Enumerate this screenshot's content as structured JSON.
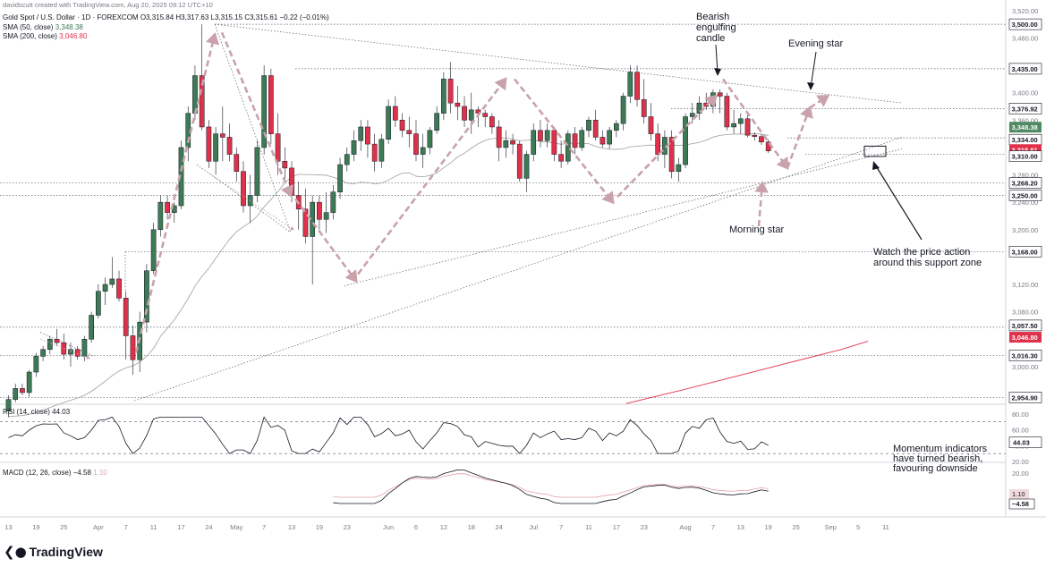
{
  "header": {
    "credit": "davidscutt created with TradingView.com, Aug 20, 2025 09:12 UTC+10",
    "symbol_line": "Gold Spot / U.S. Dollar · 1D · FOREXCOM  O3,315.84  H3,317.63  L3,315.15  C3,315.61  −0.22 (−0.01%)",
    "sma50_label": "SMA (50, close)",
    "sma50_value": "3,348.38",
    "sma200_label": "SMA (200, close)",
    "sma200_value": "3,046.80",
    "rsi_label": "RSI (14, close)",
    "rsi_value": "44.03",
    "macd_label": "MACD (12, 26, close)",
    "macd_value1": "−4.58",
    "macd_value2": "1.10"
  },
  "colors": {
    "up": "#3d7a55",
    "down": "#e0314a",
    "sma50": "#9e9e9e",
    "sma200": "#e0314a",
    "arrow": "#c9a2ab",
    "black": "#131722"
  },
  "annotations": {
    "bearish_engulfing": "Bearish\nengulfing\ncandle",
    "evening_star": "Evening star",
    "morning_star": "Morning star",
    "watch": "Watch the price action\naround this support zone",
    "momentum": "Momentum indicators\nhave turned bearish,\nfavouring downside"
  },
  "footer": {
    "logo_text": "TradingView"
  },
  "chart_data": {
    "type": "candlestick",
    "title": "Gold Spot / U.S. Dollar",
    "price_axis": {
      "ticks": [
        "3,520.00",
        "3,480.00",
        "3,400.00",
        "3,360.00",
        "3,280.00",
        "3,240.00",
        "3,200.00",
        "3,120.00",
        "3,080.00",
        "3,000.00"
      ],
      "tick_values": [
        3520,
        3480,
        3400,
        3360,
        3280,
        3240,
        3200,
        3120,
        3080,
        3000
      ],
      "ylim": [
        2945,
        3525
      ]
    },
    "level_labels": [
      {
        "text": "3,500.00",
        "value": 3500,
        "style": "black"
      },
      {
        "text": "3,435.00",
        "value": 3435,
        "style": "black"
      },
      {
        "text": "3,376.92",
        "value": 3376.92,
        "style": "black"
      },
      {
        "text": "3,348.38",
        "value": 3348.38,
        "style": "green"
      },
      {
        "text": "3,334.00",
        "value": 3334,
        "style": "black"
      },
      {
        "text": "3,315.61",
        "value": 3315.61,
        "style": "red"
      },
      {
        "text": "3,310.00",
        "value": 3310,
        "style": "black"
      },
      {
        "text": "3,268.20",
        "value": 3268.2,
        "style": "black"
      },
      {
        "text": "3,250.00",
        "value": 3250,
        "style": "black"
      },
      {
        "text": "3,168.00",
        "value": 3168,
        "style": "black"
      },
      {
        "text": "3,057.50",
        "value": 3057.5,
        "style": "black"
      },
      {
        "text": "3,046.80",
        "value": 3046.8,
        "style": "red"
      },
      {
        "text": "3,016.30",
        "value": 3016.3,
        "style": "black"
      },
      {
        "text": "2,954.90",
        "value": 2954.9,
        "style": "black"
      }
    ],
    "x_axis": [
      {
        "label": "13",
        "i": 0
      },
      {
        "label": "19",
        "i": 4
      },
      {
        "label": "25",
        "i": 8
      },
      {
        "label": "Apr",
        "i": 13
      },
      {
        "label": "7",
        "i": 17
      },
      {
        "label": "11",
        "i": 21
      },
      {
        "label": "17",
        "i": 25
      },
      {
        "label": "24",
        "i": 29
      },
      {
        "label": "May",
        "i": 33
      },
      {
        "label": "7",
        "i": 37
      },
      {
        "label": "13",
        "i": 41
      },
      {
        "label": "19",
        "i": 45
      },
      {
        "label": "23",
        "i": 49
      },
      {
        "label": "Jun",
        "i": 55
      },
      {
        "label": "6",
        "i": 59
      },
      {
        "label": "12",
        "i": 63
      },
      {
        "label": "18",
        "i": 67
      },
      {
        "label": "24",
        "i": 71
      },
      {
        "label": "Jul",
        "i": 76
      },
      {
        "label": "7",
        "i": 80
      },
      {
        "label": "11",
        "i": 84
      },
      {
        "label": "17",
        "i": 88
      },
      {
        "label": "23",
        "i": 92
      },
      {
        "label": "Aug",
        "i": 98
      },
      {
        "label": "7",
        "i": 102
      },
      {
        "label": "13",
        "i": 106
      },
      {
        "label": "19",
        "i": 110
      },
      {
        "label": "25",
        "i": 114
      },
      {
        "label": "Sep",
        "i": 119
      },
      {
        "label": "5",
        "i": 123
      },
      {
        "label": "11",
        "i": 127
      }
    ],
    "candles": [
      [
        2935,
        2958,
        2926,
        2952
      ],
      [
        2952,
        2975,
        2948,
        2968
      ],
      [
        2968,
        2975,
        2958,
        2962
      ],
      [
        2962,
        2995,
        2955,
        2992
      ],
      [
        2992,
        3020,
        2985,
        3015
      ],
      [
        3015,
        3030,
        3008,
        3025
      ],
      [
        3025,
        3045,
        3018,
        3040
      ],
      [
        3040,
        3055,
        3030,
        3035
      ],
      [
        3035,
        3048,
        3010,
        3018
      ],
      [
        3018,
        3035,
        3000,
        3025
      ],
      [
        3025,
        3030,
        3010,
        3015
      ],
      [
        3015,
        3045,
        3008,
        3040
      ],
      [
        3040,
        3080,
        3035,
        3075
      ],
      [
        3075,
        3120,
        3070,
        3110
      ],
      [
        3110,
        3130,
        3090,
        3120
      ],
      [
        3120,
        3160,
        3115,
        3128
      ],
      [
        3128,
        3140,
        3095,
        3100
      ],
      [
        3100,
        3110,
        3010,
        3045
      ],
      [
        3045,
        3060,
        2988,
        3010
      ],
      [
        3010,
        3080,
        2992,
        3065
      ],
      [
        3065,
        3150,
        3050,
        3140
      ],
      [
        3140,
        3210,
        3135,
        3200
      ],
      [
        3200,
        3250,
        3190,
        3240
      ],
      [
        3240,
        3250,
        3215,
        3225
      ],
      [
        3225,
        3240,
        3210,
        3235
      ],
      [
        3235,
        3330,
        3230,
        3320
      ],
      [
        3320,
        3380,
        3300,
        3370
      ],
      [
        3370,
        3440,
        3360,
        3425
      ],
      [
        3425,
        3500,
        3345,
        3350
      ],
      [
        3350,
        3360,
        3290,
        3300
      ],
      [
        3300,
        3350,
        3280,
        3340
      ],
      [
        3340,
        3380,
        3300,
        3335
      ],
      [
        3335,
        3355,
        3300,
        3310
      ],
      [
        3310,
        3320,
        3270,
        3285
      ],
      [
        3285,
        3300,
        3225,
        3235
      ],
      [
        3235,
        3280,
        3210,
        3250
      ],
      [
        3250,
        3330,
        3240,
        3320
      ],
      [
        3320,
        3440,
        3310,
        3425
      ],
      [
        3425,
        3435,
        3325,
        3340
      ],
      [
        3340,
        3370,
        3280,
        3300
      ],
      [
        3300,
        3320,
        3270,
        3290
      ],
      [
        3290,
        3300,
        3240,
        3250
      ],
      [
        3250,
        3270,
        3200,
        3230
      ],
      [
        3230,
        3260,
        3180,
        3190
      ],
      [
        3190,
        3250,
        3120,
        3240
      ],
      [
        3240,
        3250,
        3200,
        3215
      ],
      [
        3215,
        3255,
        3195,
        3225
      ],
      [
        3225,
        3265,
        3215,
        3255
      ],
      [
        3255,
        3305,
        3245,
        3295
      ],
      [
        3295,
        3320,
        3285,
        3310
      ],
      [
        3310,
        3345,
        3300,
        3330
      ],
      [
        3330,
        3360,
        3315,
        3350
      ],
      [
        3350,
        3360,
        3305,
        3325
      ],
      [
        3325,
        3340,
        3285,
        3300
      ],
      [
        3300,
        3340,
        3290,
        3332
      ],
      [
        3332,
        3390,
        3325,
        3380
      ],
      [
        3380,
        3395,
        3350,
        3360
      ],
      [
        3360,
        3370,
        3335,
        3345
      ],
      [
        3345,
        3365,
        3320,
        3340
      ],
      [
        3340,
        3360,
        3300,
        3310
      ],
      [
        3310,
        3340,
        3290,
        3320
      ],
      [
        3320,
        3350,
        3310,
        3345
      ],
      [
        3345,
        3380,
        3340,
        3370
      ],
      [
        3370,
        3430,
        3360,
        3420
      ],
      [
        3420,
        3445,
        3370,
        3385
      ],
      [
        3385,
        3410,
        3360,
        3380
      ],
      [
        3380,
        3395,
        3350,
        3360
      ],
      [
        3360,
        3400,
        3340,
        3375
      ],
      [
        3375,
        3380,
        3350,
        3370
      ],
      [
        3370,
        3375,
        3350,
        3365
      ],
      [
        3365,
        3370,
        3340,
        3350
      ],
      [
        3350,
        3360,
        3300,
        3320
      ],
      [
        3320,
        3345,
        3305,
        3330
      ],
      [
        3330,
        3340,
        3310,
        3325
      ],
      [
        3325,
        3330,
        3270,
        3275
      ],
      [
        3275,
        3315,
        3255,
        3310
      ],
      [
        3310,
        3355,
        3300,
        3345
      ],
      [
        3345,
        3360,
        3320,
        3330
      ],
      [
        3330,
        3355,
        3320,
        3345
      ],
      [
        3345,
        3350,
        3300,
        3310
      ],
      [
        3310,
        3330,
        3290,
        3300
      ],
      [
        3300,
        3345,
        3295,
        3340
      ],
      [
        3340,
        3350,
        3310,
        3320
      ],
      [
        3320,
        3350,
        3315,
        3345
      ],
      [
        3345,
        3365,
        3335,
        3360
      ],
      [
        3360,
        3375,
        3330,
        3335
      ],
      [
        3335,
        3345,
        3320,
        3325
      ],
      [
        3325,
        3350,
        3318,
        3345
      ],
      [
        3345,
        3360,
        3335,
        3355
      ],
      [
        3355,
        3400,
        3345,
        3395
      ],
      [
        3395,
        3440,
        3385,
        3430
      ],
      [
        3430,
        3440,
        3380,
        3390
      ],
      [
        3390,
        3420,
        3355,
        3365
      ],
      [
        3365,
        3385,
        3330,
        3340
      ],
      [
        3340,
        3355,
        3300,
        3310
      ],
      [
        3310,
        3345,
        3290,
        3335
      ],
      [
        3335,
        3345,
        3275,
        3285
      ],
      [
        3285,
        3305,
        3270,
        3295
      ],
      [
        3295,
        3370,
        3290,
        3365
      ],
      [
        3365,
        3385,
        3355,
        3370
      ],
      [
        3370,
        3395,
        3360,
        3385
      ],
      [
        3385,
        3400,
        3375,
        3380
      ],
      [
        3380,
        3405,
        3370,
        3400
      ],
      [
        3400,
        3405,
        3370,
        3395
      ],
      [
        3395,
        3400,
        3345,
        3350
      ],
      [
        3350,
        3375,
        3340,
        3355
      ],
      [
        3355,
        3370,
        3340,
        3362
      ],
      [
        3362,
        3368,
        3335,
        3338
      ],
      [
        3338,
        3342,
        3330,
        3336
      ],
      [
        3336,
        3340,
        3324,
        3328
      ],
      [
        3328,
        3332,
        3312,
        3315
      ]
    ],
    "sma50": [
      [
        0,
        3345
      ],
      [
        5,
        3330
      ],
      [
        10,
        3310
      ],
      [
        15,
        3290
      ],
      [
        20,
        3250
      ],
      [
        30,
        3185
      ],
      [
        40,
        3120
      ],
      [
        50,
        3080
      ],
      [
        60,
        3050
      ],
      [
        70,
        3025
      ],
      [
        80,
        3010
      ],
      [
        90,
        2995
      ],
      [
        100,
        2980
      ],
      [
        110,
        2960
      ],
      [
        120,
        2950
      ],
      [
        130,
        2945
      ],
      [
        140,
        2945
      ],
      [
        150,
        2950
      ],
      [
        160,
        2955
      ],
      [
        170,
        2965
      ],
      [
        180,
        2975
      ],
      [
        190,
        2990
      ],
      [
        200,
        3010
      ],
      [
        210,
        3040
      ],
      [
        220,
        3080
      ],
      [
        230,
        3120
      ],
      [
        240,
        3170
      ],
      [
        250,
        3215
      ],
      [
        260,
        3250
      ],
      [
        270,
        3270
      ],
      [
        280,
        3290
      ],
      [
        290,
        3305
      ],
      [
        300,
        3315
      ],
      [
        310,
        3318
      ],
      [
        320,
        3325
      ],
      [
        330,
        3330
      ],
      [
        340,
        3333
      ],
      [
        360,
        3335
      ],
      [
        380,
        3335
      ],
      [
        400,
        3338
      ],
      [
        420,
        3340
      ],
      [
        440,
        3345
      ],
      [
        470,
        3345
      ],
      [
        490,
        3349
      ],
      [
        510,
        3350
      ]
    ],
    "sma200": [
      [
        700,
        2946
      ],
      [
        760,
        2965
      ],
      [
        820,
        2985
      ],
      [
        880,
        3005
      ],
      [
        940,
        3025
      ],
      [
        970,
        3037
      ]
    ],
    "rsi": {
      "ylim": [
        20,
        90
      ],
      "ticks": [
        "80.00",
        "60.00",
        "40.00",
        "20.00"
      ],
      "tick_values": [
        80,
        60,
        40,
        20
      ],
      "last": 44.03
    },
    "macd": {
      "ticks": [
        "20.00"
      ],
      "tick_values": [
        20
      ],
      "last_macd": -4.58,
      "last_signal": 1.1
    }
  }
}
